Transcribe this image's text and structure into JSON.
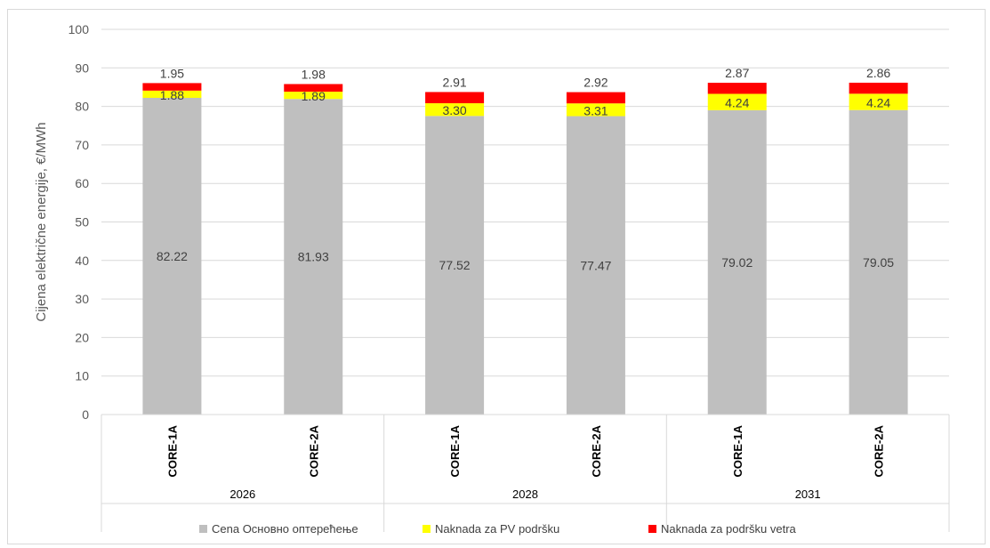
{
  "chart_data": {
    "type": "bar",
    "stacked": true,
    "ylabel": "Cijena električne energije, €/MWh",
    "ylim": [
      0,
      100
    ],
    "yticks": [
      0,
      10,
      20,
      30,
      40,
      50,
      60,
      70,
      80,
      90,
      100
    ],
    "grid": true,
    "legend_position": "bottom",
    "categories": [
      "CORE-1A",
      "CORE-2A",
      "CORE-1A",
      "CORE-2A",
      "CORE-1A",
      "CORE-2A"
    ],
    "groups": [
      {
        "label": "2026",
        "span": 2
      },
      {
        "label": "2028",
        "span": 2
      },
      {
        "label": "2031",
        "span": 2
      }
    ],
    "series": [
      {
        "name": "Cena  Основно оптерећење",
        "color": "#bfbfbf",
        "values": [
          82.22,
          81.93,
          77.52,
          77.47,
          79.02,
          79.05
        ],
        "labels": [
          "82.22",
          "81.93",
          "77.52",
          "77.47",
          "79.02",
          "79.05"
        ]
      },
      {
        "name": "Naknada za PV podršku",
        "color": "#ffff00",
        "values": [
          1.88,
          1.89,
          3.3,
          3.31,
          4.24,
          4.24
        ],
        "labels": [
          "1.88",
          "1.89",
          "3.30",
          "3.31",
          "4.24",
          "4.24"
        ]
      },
      {
        "name": "Naknada za podršku vetra",
        "color": "#ff0000",
        "values": [
          1.95,
          1.98,
          2.91,
          2.92,
          2.87,
          2.86
        ],
        "labels": [
          "1.95",
          "1.98",
          "2.91",
          "2.92",
          "2.87",
          "2.86"
        ]
      }
    ]
  }
}
